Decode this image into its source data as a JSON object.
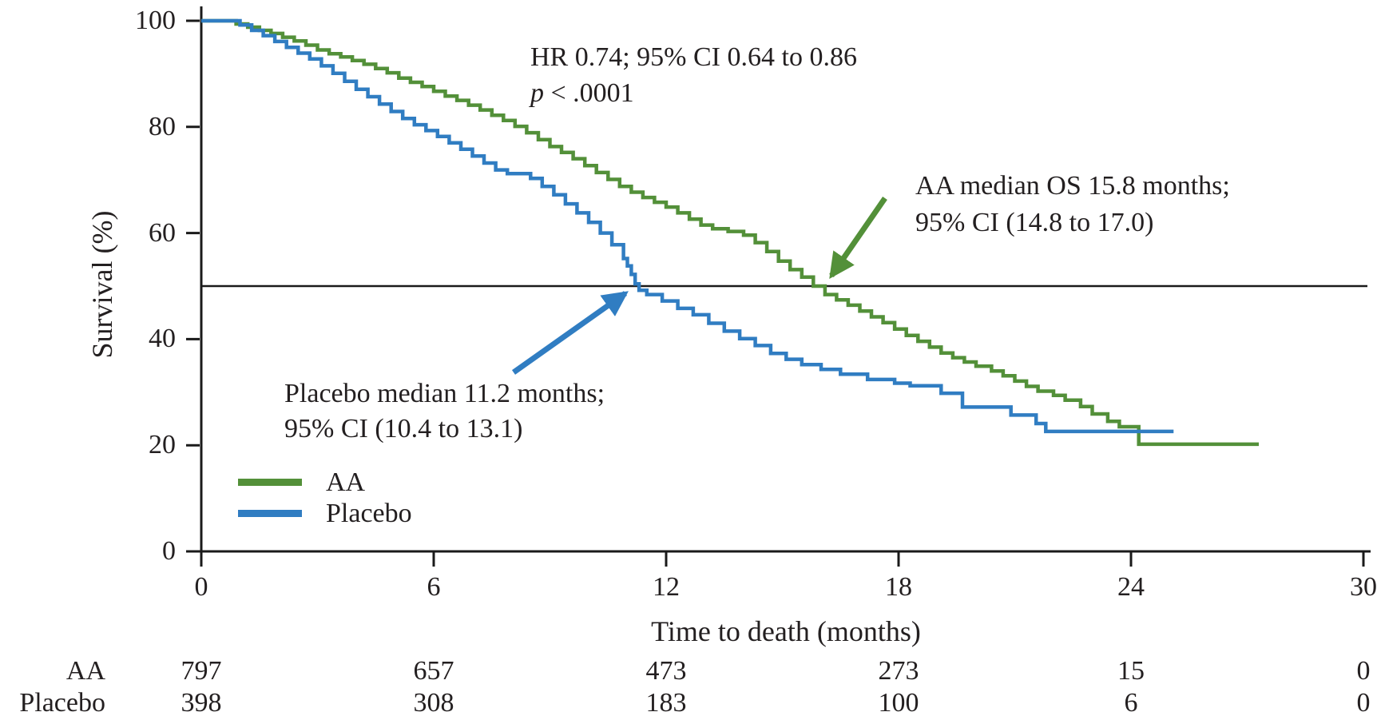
{
  "chart_data": {
    "type": "line",
    "subtype": "kaplan-meier-step",
    "title": "",
    "xlabel": "Time to death (months)",
    "ylabel": "Survival (%)",
    "xlim": [
      0,
      30
    ],
    "ylim": [
      0,
      100
    ],
    "x_ticks": [
      0,
      6,
      12,
      18,
      24,
      30
    ],
    "y_ticks": [
      0,
      20,
      40,
      60,
      80,
      100
    ],
    "grid": false,
    "reference_line_y": 50,
    "legend_position": "lower-left-inside",
    "axis_color": "#1a1a1a",
    "text_color": "#231f20",
    "series": [
      {
        "name": "AA",
        "color": "#539039",
        "median_months": 15.8,
        "end_t": 27.3,
        "points": [
          [
            0,
            100
          ],
          [
            0.9,
            99.4
          ],
          [
            1.2,
            98.8
          ],
          [
            1.5,
            98.2
          ],
          [
            1.8,
            97.6
          ],
          [
            2.1,
            96.9
          ],
          [
            2.4,
            96.2
          ],
          [
            2.7,
            95.4
          ],
          [
            3.0,
            94.5
          ],
          [
            3.3,
            93.8
          ],
          [
            3.6,
            93.2
          ],
          [
            3.9,
            92.5
          ],
          [
            4.2,
            91.8
          ],
          [
            4.5,
            91.0
          ],
          [
            4.8,
            90.2
          ],
          [
            5.1,
            89.2
          ],
          [
            5.4,
            88.4
          ],
          [
            5.7,
            87.6
          ],
          [
            6.0,
            86.7
          ],
          [
            6.3,
            85.8
          ],
          [
            6.6,
            85.0
          ],
          [
            6.9,
            84.1
          ],
          [
            7.2,
            83.2
          ],
          [
            7.5,
            82.2
          ],
          [
            7.8,
            81.2
          ],
          [
            8.1,
            80.1
          ],
          [
            8.4,
            78.9
          ],
          [
            8.7,
            77.6
          ],
          [
            9.0,
            76.3
          ],
          [
            9.3,
            75.2
          ],
          [
            9.6,
            74.0
          ],
          [
            9.9,
            72.7
          ],
          [
            10.2,
            71.4
          ],
          [
            10.5,
            70.1
          ],
          [
            10.8,
            68.8
          ],
          [
            11.1,
            67.7
          ],
          [
            11.4,
            66.7
          ],
          [
            11.7,
            65.8
          ],
          [
            12.0,
            64.9
          ],
          [
            12.3,
            63.8
          ],
          [
            12.6,
            62.6
          ],
          [
            12.9,
            61.5
          ],
          [
            13.2,
            60.8
          ],
          [
            13.6,
            60.3
          ],
          [
            14.0,
            59.6
          ],
          [
            14.3,
            58.2
          ],
          [
            14.6,
            56.5
          ],
          [
            14.9,
            54.7
          ],
          [
            15.2,
            53.1
          ],
          [
            15.5,
            51.7
          ],
          [
            15.8,
            50.0
          ],
          [
            16.1,
            48.4
          ],
          [
            16.4,
            47.4
          ],
          [
            16.7,
            46.4
          ],
          [
            17.0,
            45.3
          ],
          [
            17.3,
            44.2
          ],
          [
            17.6,
            43.1
          ],
          [
            17.9,
            41.9
          ],
          [
            18.2,
            40.7
          ],
          [
            18.5,
            39.6
          ],
          [
            18.8,
            38.5
          ],
          [
            19.1,
            37.4
          ],
          [
            19.4,
            36.5
          ],
          [
            19.7,
            35.7
          ],
          [
            20.0,
            34.9
          ],
          [
            20.4,
            34.0
          ],
          [
            20.7,
            33.1
          ],
          [
            21.0,
            32.1
          ],
          [
            21.3,
            31.1
          ],
          [
            21.6,
            30.2
          ],
          [
            22.0,
            29.4
          ],
          [
            22.3,
            28.5
          ],
          [
            22.7,
            27.3
          ],
          [
            23.0,
            25.9
          ],
          [
            23.4,
            24.5
          ],
          [
            23.7,
            23.5
          ],
          [
            24.2,
            20.2
          ]
        ]
      },
      {
        "name": "Placebo",
        "color": "#307dc2",
        "median_months": 11.2,
        "end_t": 25.1,
        "points": [
          [
            0,
            100
          ],
          [
            1.0,
            99.2
          ],
          [
            1.3,
            98.2
          ],
          [
            1.6,
            97.2
          ],
          [
            1.9,
            96.1
          ],
          [
            2.2,
            95.0
          ],
          [
            2.5,
            93.9
          ],
          [
            2.8,
            92.8
          ],
          [
            3.1,
            91.5
          ],
          [
            3.4,
            90.1
          ],
          [
            3.7,
            88.6
          ],
          [
            4.0,
            87.1
          ],
          [
            4.3,
            85.7
          ],
          [
            4.6,
            84.3
          ],
          [
            4.9,
            82.9
          ],
          [
            5.2,
            81.6
          ],
          [
            5.5,
            80.4
          ],
          [
            5.8,
            79.3
          ],
          [
            6.1,
            78.2
          ],
          [
            6.4,
            77.0
          ],
          [
            6.7,
            75.8
          ],
          [
            7.0,
            74.5
          ],
          [
            7.3,
            73.2
          ],
          [
            7.6,
            71.9
          ],
          [
            7.9,
            71.2
          ],
          [
            8.5,
            70.3
          ],
          [
            8.8,
            68.8
          ],
          [
            9.1,
            67.2
          ],
          [
            9.4,
            65.5
          ],
          [
            9.7,
            63.8
          ],
          [
            10.0,
            62.0
          ],
          [
            10.3,
            60.0
          ],
          [
            10.6,
            57.8
          ],
          [
            10.9,
            55.2
          ],
          [
            11.0,
            53.8
          ],
          [
            11.1,
            52.2
          ],
          [
            11.2,
            50.4
          ],
          [
            11.3,
            49.2
          ],
          [
            11.5,
            48.4
          ],
          [
            11.9,
            47.2
          ],
          [
            12.3,
            45.8
          ],
          [
            12.7,
            44.6
          ],
          [
            13.1,
            43.0
          ],
          [
            13.5,
            41.5
          ],
          [
            13.9,
            40.1
          ],
          [
            14.3,
            38.8
          ],
          [
            14.7,
            37.3
          ],
          [
            15.1,
            36.2
          ],
          [
            15.5,
            35.2
          ],
          [
            16.0,
            34.3
          ],
          [
            16.5,
            33.4
          ],
          [
            17.2,
            32.4
          ],
          [
            17.9,
            31.7
          ],
          [
            18.3,
            31.2
          ],
          [
            19.1,
            29.8
          ],
          [
            19.65,
            27.2
          ],
          [
            20.9,
            25.7
          ],
          [
            21.55,
            24.1
          ],
          [
            21.8,
            22.6
          ]
        ]
      }
    ],
    "annotations": {
      "hr_line1": "HR 0.74; 95% CI 0.64 to 0.86",
      "p_symbol": "p",
      "p_rest": " < .0001",
      "aa_line1": "AA median OS 15.8 months;",
      "aa_line2": "95% CI (14.8 to 17.0)",
      "placebo_line1": "Placebo median 11.2 months;",
      "placebo_line2": "95% CI (10.4 to 13.1)"
    },
    "at_risk": {
      "time_points": [
        0,
        6,
        12,
        18,
        24,
        30
      ],
      "rows": [
        {
          "label": "AA",
          "counts": [
            "797",
            "657",
            "473",
            "273",
            "15",
            "0"
          ]
        },
        {
          "label": "Placebo",
          "counts": [
            "398",
            "308",
            "183",
            "100",
            "6",
            "0"
          ]
        }
      ]
    }
  }
}
